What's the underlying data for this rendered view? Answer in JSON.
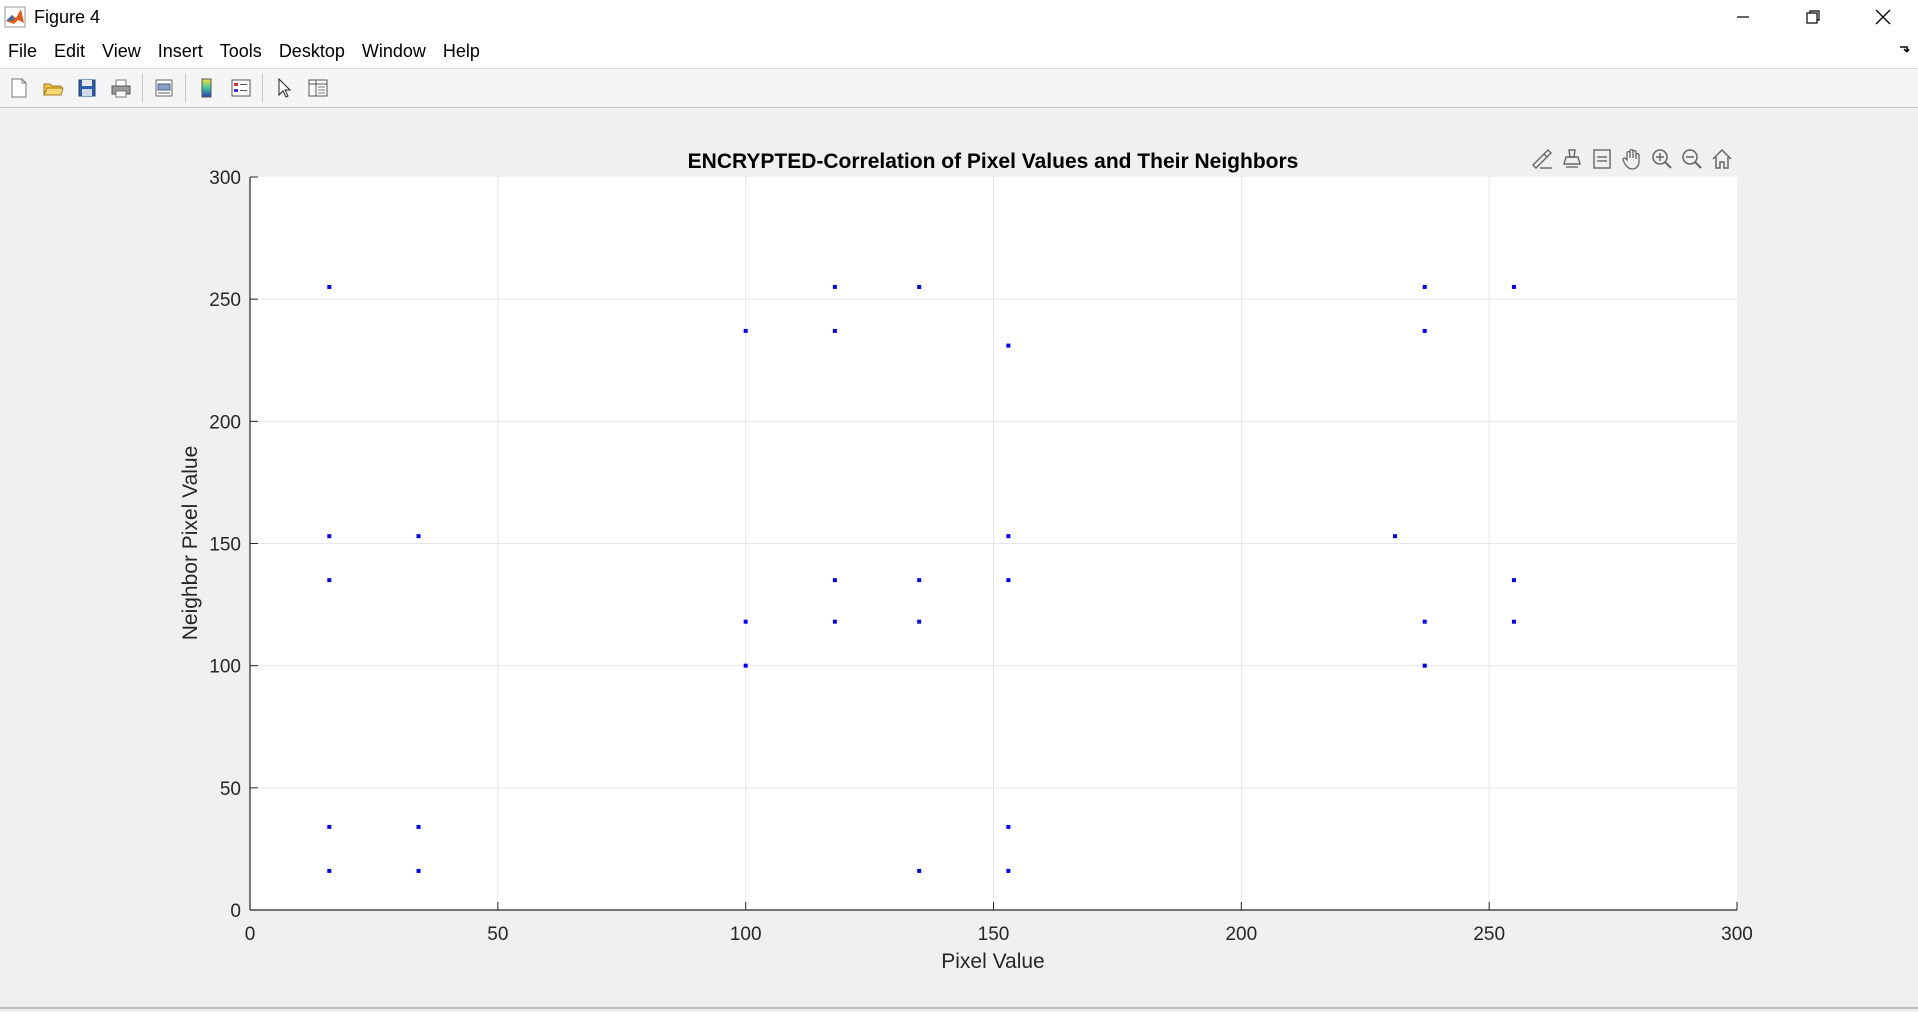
{
  "window": {
    "title": "Figure 4"
  },
  "menu": [
    "File",
    "Edit",
    "View",
    "Insert",
    "Tools",
    "Desktop",
    "Window",
    "Help"
  ],
  "toolbar_icons": [
    "new-figure-icon",
    "open-file-icon",
    "save-icon",
    "print-icon",
    "print-preview-icon",
    "colorbar-icon",
    "legend-icon",
    "edit-plot-icon",
    "property-inspector-icon"
  ],
  "axes_toolbar_icons": [
    "brush-icon",
    "data-tips-icon",
    "restore-view-icon",
    "pan-icon",
    "zoom-in-icon",
    "zoom-out-icon",
    "home-icon"
  ],
  "colors": {
    "marker": "#0000ff",
    "grid": "#e6e6e6",
    "axis": "#262626"
  },
  "chart_data": {
    "type": "scatter",
    "title": "ENCRYPTED-Correlation of Pixel Values and Their Neighbors",
    "xlabel": "Pixel Value",
    "ylabel": "Neighbor Pixel Value",
    "xlim": [
      0,
      300
    ],
    "ylim": [
      0,
      300
    ],
    "xticks": [
      0,
      50,
      100,
      150,
      200,
      250,
      300
    ],
    "yticks": [
      0,
      50,
      100,
      150,
      200,
      250,
      300
    ],
    "grid": true,
    "points": [
      [
        16,
        255
      ],
      [
        16,
        153
      ],
      [
        16,
        135
      ],
      [
        16,
        34
      ],
      [
        16,
        16
      ],
      [
        34,
        153
      ],
      [
        34,
        34
      ],
      [
        34,
        16
      ],
      [
        100,
        237
      ],
      [
        100,
        118
      ],
      [
        100,
        100
      ],
      [
        118,
        255
      ],
      [
        118,
        237
      ],
      [
        118,
        135
      ],
      [
        118,
        118
      ],
      [
        135,
        255
      ],
      [
        135,
        135
      ],
      [
        135,
        118
      ],
      [
        135,
        16
      ],
      [
        153,
        231
      ],
      [
        153,
        153
      ],
      [
        153,
        135
      ],
      [
        153,
        34
      ],
      [
        153,
        16
      ],
      [
        231,
        153
      ],
      [
        237,
        255
      ],
      [
        237,
        237
      ],
      [
        237,
        118
      ],
      [
        237,
        100
      ],
      [
        255,
        255
      ],
      [
        255,
        135
      ],
      [
        255,
        118
      ]
    ]
  }
}
